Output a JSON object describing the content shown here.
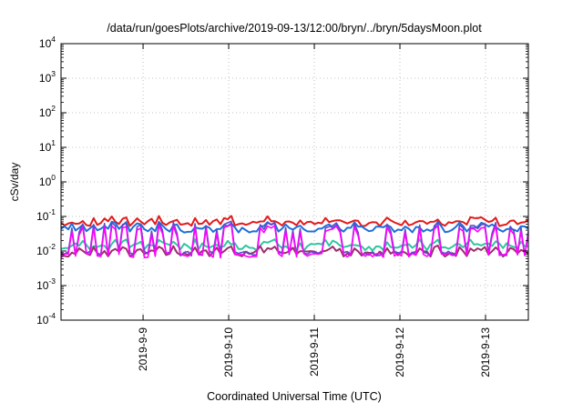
{
  "chart_data": {
    "type": "line",
    "title": "/data/run/goesPlots/archive/2019-09-13/12:00/bryn/../bryn/5daysMoon.plot",
    "xlabel": "Coordinated Universal Time (UTC)",
    "ylabel": "cSv/day",
    "yscale": "log",
    "ylim": [
      0.0001,
      10000
    ],
    "y_ticks": [
      {
        "base": "10",
        "exp": "-4",
        "value": 0.0001
      },
      {
        "base": "10",
        "exp": "-3",
        "value": 0.001
      },
      {
        "base": "10",
        "exp": "-2",
        "value": 0.01
      },
      {
        "base": "10",
        "exp": "-1",
        "value": 0.1
      },
      {
        "base": "10",
        "exp": "0",
        "value": 1
      },
      {
        "base": "10",
        "exp": "1",
        "value": 10
      },
      {
        "base": "10",
        "exp": "2",
        "value": 100
      },
      {
        "base": "10",
        "exp": "3",
        "value": 1000
      },
      {
        "base": "10",
        "exp": "4",
        "value": 10000
      }
    ],
    "xlim": [
      "2019-09-08T01:00",
      "2019-09-13T12:00"
    ],
    "x_ticks": [
      {
        "label": "2019-9-9",
        "value": "2019-09-09T00:00"
      },
      {
        "label": "2019-9-10",
        "value": "2019-09-10T00:00"
      },
      {
        "label": "2019-9-11",
        "value": "2019-09-11T00:00"
      },
      {
        "label": "2019-9-12",
        "value": "2019-09-12T00:00"
      },
      {
        "label": "2019-9-13",
        "value": "2019-09-13T00:00"
      }
    ],
    "grid": true,
    "legend": "none",
    "series": [
      {
        "color": "#e41a1c",
        "base": 0.062,
        "mode": "band",
        "spread": 0.15
      },
      {
        "color": "#1f6fd8",
        "base": 0.042,
        "mode": "band",
        "spread": 0.18
      },
      {
        "color": "#2fc6a0",
        "base": 0.013,
        "mode": "band",
        "spread": 0.22
      },
      {
        "color": "#9b2f6e",
        "base": 0.0085,
        "mode": "band",
        "spread": 0.18
      },
      {
        "color": "#5b4bc8",
        "base": 0.0085,
        "mode": "spiky",
        "peak": 0.075
      },
      {
        "color": "#ff00ff",
        "base": 0.0075,
        "mode": "spiky",
        "peak": 0.06
      }
    ]
  }
}
